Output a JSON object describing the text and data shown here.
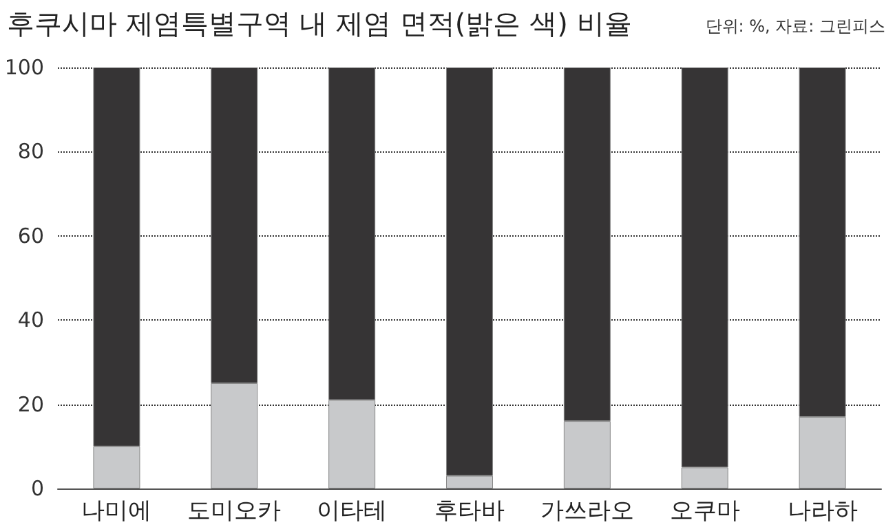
{
  "chart_data": {
    "type": "bar",
    "title": "후쿠시마 제염특별구역 내 제염 면적(밝은 색) 비율",
    "subtitle": "단위: %, 자료: 그린피스",
    "categories": [
      "나미에",
      "도미오카",
      "이타테",
      "후타바",
      "가쓰라오",
      "오쿠마",
      "나라하"
    ],
    "stacked": true,
    "series": [
      {
        "color": "#c8c9cb",
        "values": [
          10,
          25,
          21,
          3,
          16,
          5,
          17
        ]
      },
      {
        "color": "#363435",
        "values": [
          90,
          75,
          79,
          97,
          84,
          95,
          83
        ]
      }
    ],
    "ylim": [
      0,
      100
    ],
    "yticks": [
      0,
      20,
      40,
      60,
      80,
      100
    ],
    "grid": "y"
  }
}
